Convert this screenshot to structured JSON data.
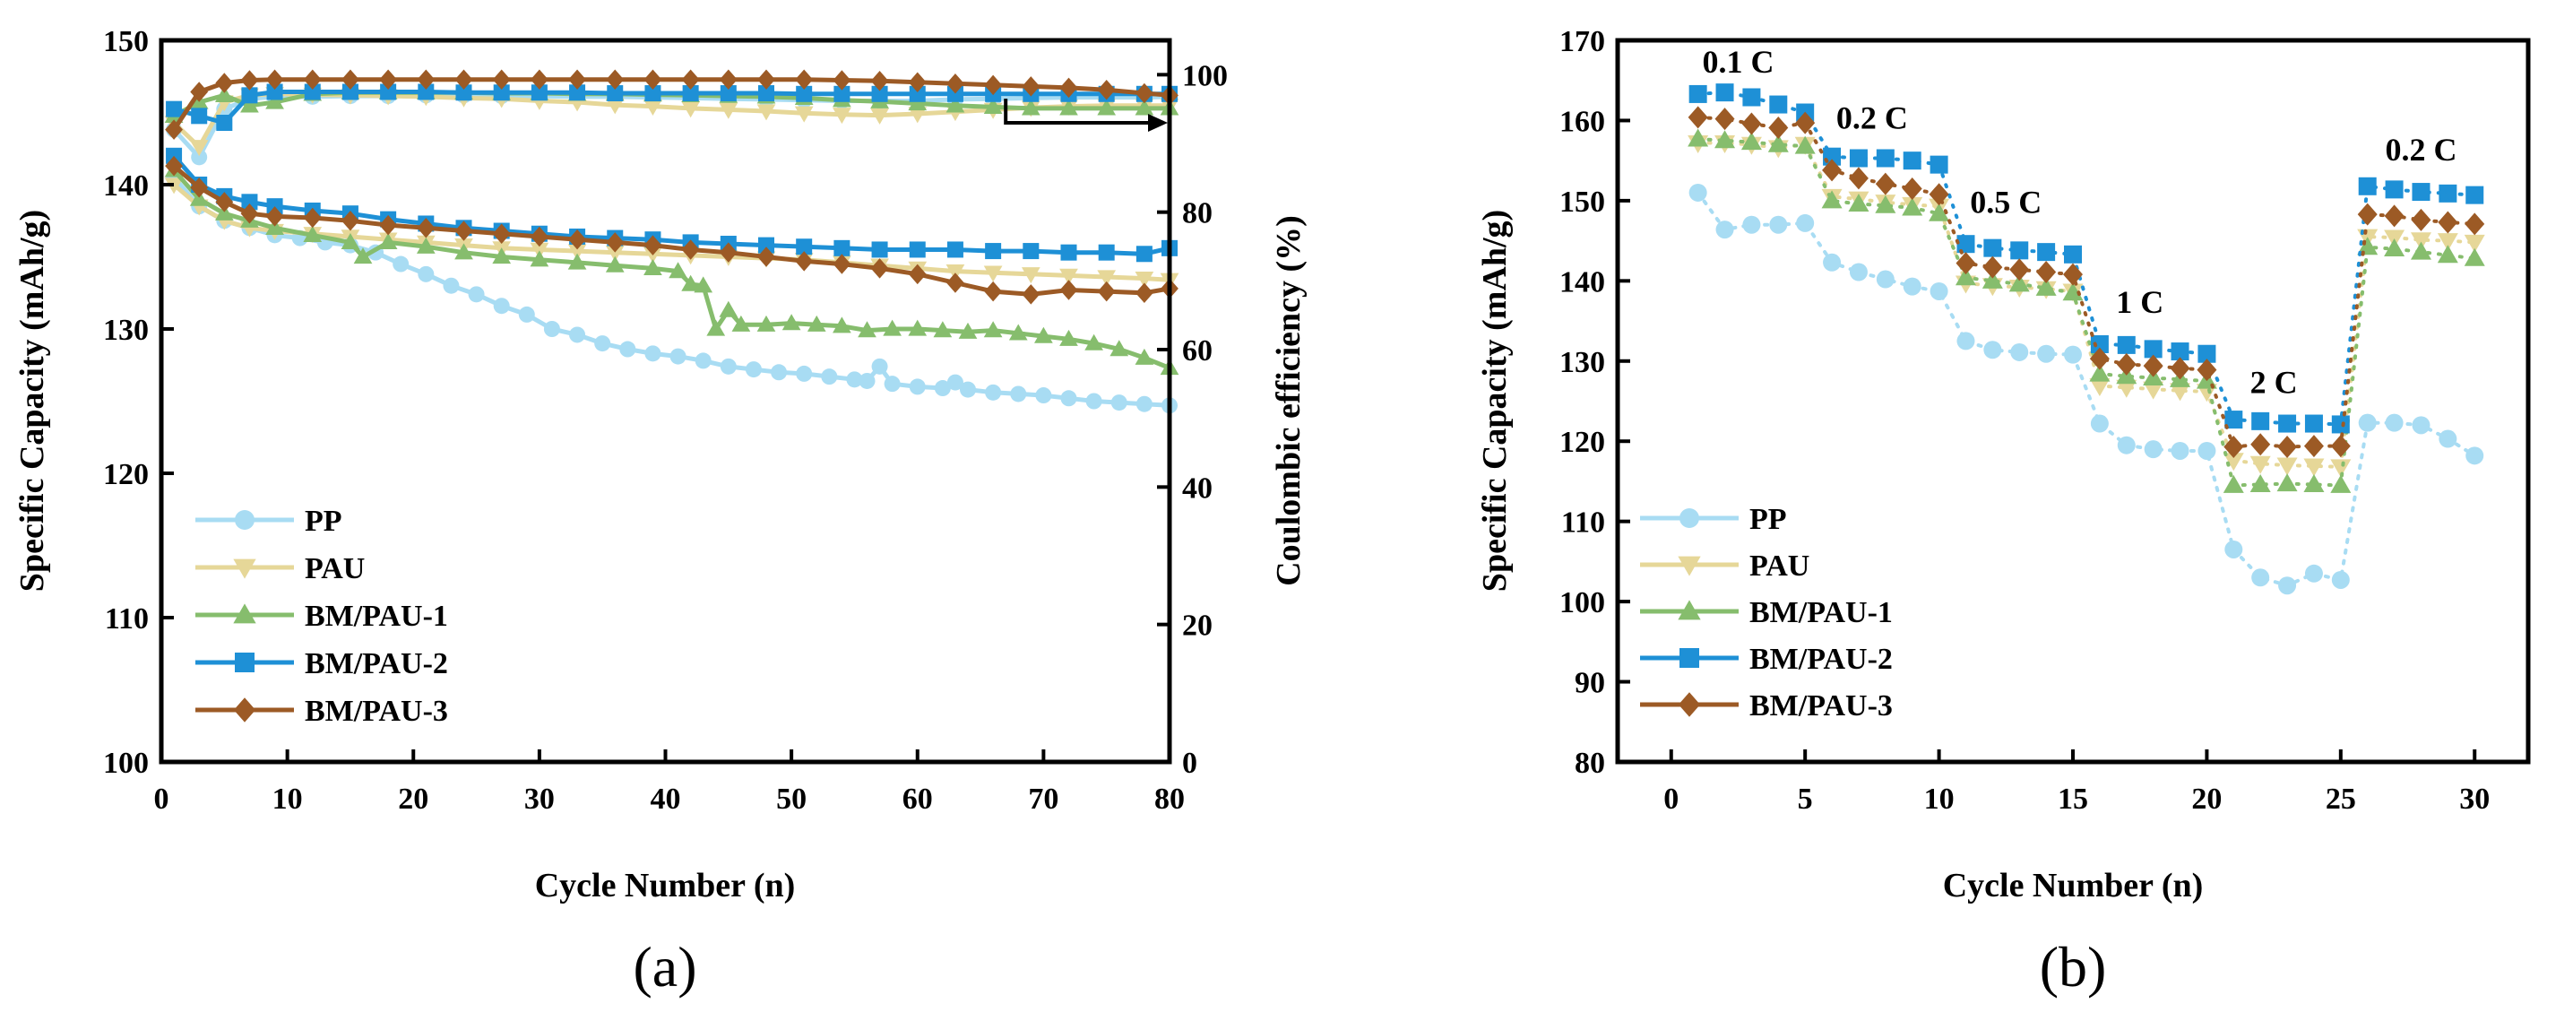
{
  "panel_labels": {
    "a": "(a)",
    "b": "(b)"
  },
  "colors": {
    "PP": "#a8dcf3",
    "PAU": "#e6d798",
    "BM/PAU-1": "#86bd6d",
    "BM/PAU-2": "#1e90d6",
    "BM/PAU-3": "#9c5a25"
  },
  "markers": {
    "PP": "circle",
    "PAU": "triangle-down",
    "BM/PAU-1": "triangle-up",
    "BM/PAU-2": "square",
    "BM/PAU-3": "diamond"
  },
  "chart_data": [
    {
      "type": "line",
      "id": "a",
      "title": "",
      "xlabel": "Cycle Number (n)",
      "ylabel": "Specific Capacity (mAh/g)",
      "y2label": "Coulombic efficiency (%)",
      "xlim": [
        0,
        80
      ],
      "ylim": [
        100,
        150
      ],
      "y2lim": [
        0,
        105
      ],
      "xticks": [
        0,
        10,
        20,
        30,
        40,
        50,
        60,
        70,
        80
      ],
      "yticks": [
        100,
        110,
        120,
        130,
        140,
        150
      ],
      "y2ticks": [
        0,
        20,
        40,
        60,
        80,
        100
      ],
      "legend_position": "bottom-left",
      "arrow_annotation": "points to right axis from CE curves at cycle 67",
      "series": [
        {
          "name": "PP",
          "axis": "left",
          "x": [
            1,
            3,
            5,
            7,
            9,
            11,
            13,
            15,
            17,
            19,
            21,
            23,
            25,
            27,
            29,
            31,
            33,
            35,
            37,
            39,
            41,
            43,
            45,
            47,
            49,
            51,
            53,
            55,
            56,
            57,
            58,
            60,
            62,
            63,
            64,
            66,
            68,
            70,
            72,
            74,
            76,
            78,
            80
          ],
          "values": [
            140.5,
            138.5,
            137.5,
            137.0,
            136.5,
            136.3,
            136.0,
            135.8,
            135.3,
            134.5,
            133.8,
            133.0,
            132.4,
            131.6,
            131.0,
            130.0,
            129.6,
            129.0,
            128.6,
            128.3,
            128.1,
            127.8,
            127.4,
            127.2,
            127.0,
            126.9,
            126.7,
            126.5,
            126.4,
            127.4,
            126.2,
            126.0,
            125.9,
            126.3,
            125.8,
            125.6,
            125.5,
            125.4,
            125.2,
            125.0,
            124.9,
            124.8,
            124.7
          ]
        },
        {
          "name": "PAU",
          "axis": "left",
          "x": [
            1,
            3,
            5,
            7,
            9,
            12,
            15,
            18,
            21,
            24,
            27,
            30,
            33,
            36,
            39,
            42,
            45,
            48,
            51,
            54,
            57,
            60,
            63,
            66,
            69,
            72,
            75,
            78,
            80
          ],
          "values": [
            140.0,
            138.5,
            137.5,
            137.0,
            136.8,
            136.6,
            136.4,
            136.2,
            136.0,
            135.8,
            135.6,
            135.5,
            135.4,
            135.3,
            135.2,
            135.1,
            135.0,
            134.9,
            134.8,
            134.6,
            134.4,
            134.2,
            134.0,
            133.9,
            133.8,
            133.7,
            133.6,
            133.5,
            133.4
          ]
        },
        {
          "name": "BM/PAU-1",
          "axis": "left",
          "x": [
            1,
            3,
            5,
            7,
            9,
            12,
            15,
            16,
            18,
            21,
            24,
            27,
            30,
            33,
            36,
            39,
            41,
            42,
            43,
            44,
            45,
            46,
            48,
            50,
            52,
            54,
            56,
            58,
            60,
            62,
            64,
            66,
            68,
            70,
            72,
            74,
            76,
            78,
            80
          ],
          "values": [
            141.0,
            139.0,
            138.0,
            137.5,
            137.0,
            136.5,
            136.0,
            135.0,
            136.0,
            135.7,
            135.3,
            135.0,
            134.8,
            134.6,
            134.4,
            134.2,
            134.0,
            133.1,
            133.0,
            130.0,
            131.3,
            130.3,
            130.3,
            130.4,
            130.3,
            130.2,
            129.9,
            130.0,
            130.0,
            129.9,
            129.8,
            129.9,
            129.7,
            129.5,
            129.3,
            129.0,
            128.6,
            128.0,
            127.3
          ]
        },
        {
          "name": "BM/PAU-2",
          "axis": "left",
          "x": [
            1,
            3,
            5,
            7,
            9,
            12,
            15,
            18,
            21,
            24,
            27,
            30,
            33,
            36,
            39,
            42,
            45,
            48,
            51,
            54,
            57,
            60,
            63,
            66,
            69,
            72,
            75,
            78,
            80
          ],
          "values": [
            142.0,
            140.0,
            139.2,
            138.8,
            138.5,
            138.2,
            138.0,
            137.6,
            137.3,
            137.0,
            136.8,
            136.6,
            136.4,
            136.3,
            136.2,
            136.0,
            135.9,
            135.8,
            135.7,
            135.6,
            135.5,
            135.5,
            135.5,
            135.4,
            135.4,
            135.3,
            135.3,
            135.2,
            135.6
          ]
        },
        {
          "name": "BM/PAU-3",
          "axis": "left",
          "x": [
            1,
            3,
            5,
            7,
            9,
            12,
            15,
            18,
            21,
            24,
            27,
            30,
            33,
            36,
            39,
            42,
            45,
            48,
            51,
            54,
            57,
            60,
            63,
            66,
            69,
            72,
            75,
            78,
            80
          ],
          "values": [
            141.3,
            139.8,
            138.8,
            138.0,
            137.8,
            137.7,
            137.5,
            137.2,
            137.0,
            136.8,
            136.6,
            136.4,
            136.2,
            136.0,
            135.8,
            135.5,
            135.3,
            135.0,
            134.7,
            134.5,
            134.2,
            133.8,
            133.2,
            132.6,
            132.4,
            132.7,
            132.6,
            132.5,
            132.8
          ]
        },
        {
          "name": "PP CE",
          "axis": "right",
          "x": [
            1,
            3,
            5,
            7,
            9,
            12,
            15,
            18,
            21,
            24,
            27,
            30,
            33,
            36,
            39,
            42,
            45,
            48,
            51,
            54,
            57,
            60,
            63,
            66,
            69,
            72,
            75,
            78,
            80
          ],
          "values": [
            92,
            88,
            95,
            96.5,
            96.8,
            96.8,
            96.9,
            96.9,
            97,
            97,
            96.9,
            96.9,
            96.8,
            96.8,
            96.7,
            96.6,
            96.5,
            96.4,
            96.3,
            96.2,
            96.2,
            96.2,
            96.4,
            96.5,
            96.6,
            96.7,
            96.7,
            96.7,
            96.8
          ]
        },
        {
          "name": "PAU CE",
          "axis": "right",
          "x": [
            1,
            3,
            5,
            7,
            9,
            12,
            15,
            18,
            21,
            24,
            27,
            30,
            33,
            36,
            39,
            42,
            45,
            48,
            51,
            54,
            57,
            60,
            63,
            66,
            69,
            72,
            75,
            78,
            80
          ],
          "values": [
            93,
            89.5,
            96,
            97,
            97.2,
            97.1,
            97,
            96.9,
            96.8,
            96.6,
            96.5,
            96.2,
            96,
            95.6,
            95.4,
            95.1,
            94.9,
            94.7,
            94.4,
            94.2,
            94.1,
            94.3,
            94.6,
            94.9,
            95.2,
            95.4,
            95.5,
            95.5,
            95.5
          ]
        },
        {
          "name": "BM/PAU-1 CE",
          "axis": "right",
          "x": [
            1,
            3,
            5,
            7,
            9,
            12,
            15,
            18,
            21,
            24,
            27,
            30,
            33,
            36,
            39,
            42,
            45,
            48,
            51,
            54,
            57,
            60,
            63,
            66,
            69,
            72,
            75,
            78,
            80
          ],
          "values": [
            94,
            96,
            97,
            95.5,
            96,
            97.2,
            97.4,
            97.4,
            97.4,
            97.4,
            97.3,
            97.3,
            97.2,
            97.2,
            97.1,
            97,
            96.9,
            96.8,
            96.6,
            96.3,
            96.1,
            95.8,
            95.5,
            95.3,
            95.1,
            95.1,
            95.1,
            95.1,
            95.1
          ]
        },
        {
          "name": "BM/PAU-2 CE",
          "axis": "right",
          "x": [
            1,
            3,
            5,
            7,
            9,
            12,
            15,
            18,
            21,
            24,
            27,
            30,
            33,
            36,
            39,
            42,
            45,
            48,
            51,
            54,
            57,
            60,
            63,
            66,
            69,
            72,
            75,
            78,
            80
          ],
          "values": [
            95,
            94,
            93,
            97,
            97.5,
            97.5,
            97.5,
            97.5,
            97.5,
            97.4,
            97.4,
            97.4,
            97.4,
            97.3,
            97.3,
            97.3,
            97.3,
            97.3,
            97.2,
            97.2,
            97.2,
            97.2,
            97.2,
            97.2,
            97.2,
            97.2,
            97.2,
            97.2,
            97.2
          ]
        },
        {
          "name": "BM/PAU-3 CE",
          "axis": "right",
          "x": [
            1,
            3,
            5,
            7,
            9,
            12,
            15,
            18,
            21,
            24,
            27,
            30,
            33,
            36,
            39,
            42,
            45,
            48,
            51,
            54,
            57,
            60,
            63,
            66,
            69,
            72,
            75,
            78,
            80
          ],
          "values": [
            92,
            97.5,
            98.8,
            99.2,
            99.3,
            99.3,
            99.3,
            99.3,
            99.3,
            99.3,
            99.3,
            99.3,
            99.3,
            99.3,
            99.3,
            99.3,
            99.3,
            99.3,
            99.3,
            99.2,
            99.1,
            98.9,
            98.7,
            98.5,
            98.3,
            98.1,
            97.8,
            97.3,
            97.0
          ]
        }
      ]
    },
    {
      "type": "line",
      "id": "b",
      "title": "",
      "xlabel": "Cycle Number (n)",
      "ylabel": "Specific Capacity (mAh/g)",
      "xlim": [
        -2,
        32
      ],
      "ylim": [
        80,
        170
      ],
      "xticks": [
        0,
        5,
        10,
        15,
        20,
        25,
        30
      ],
      "yticks": [
        80,
        90,
        100,
        110,
        120,
        130,
        140,
        150,
        160,
        170
      ],
      "legend_position": "bottom-left",
      "annotations": [
        {
          "text": "0.1 C",
          "x": 2.5,
          "y": 166
        },
        {
          "text": "0.2 C",
          "x": 7.5,
          "y": 159
        },
        {
          "text": "0.5 C",
          "x": 12.5,
          "y": 148.5
        },
        {
          "text": "1 C",
          "x": 17.5,
          "y": 136
        },
        {
          "text": "2 C",
          "x": 22.5,
          "y": 126
        },
        {
          "text": "0.2 C",
          "x": 28,
          "y": 155
        }
      ],
      "x": [
        1,
        2,
        3,
        4,
        5,
        6,
        7,
        8,
        9,
        10,
        11,
        12,
        13,
        14,
        15,
        16,
        17,
        18,
        19,
        20,
        21,
        22,
        23,
        24,
        25,
        26,
        27,
        28,
        29,
        30
      ],
      "series": [
        {
          "name": "PP",
          "values": [
            151,
            146.4,
            147,
            147,
            147.2,
            142.3,
            141.1,
            140.2,
            139.3,
            138.7,
            132.5,
            131.4,
            131.1,
            130.9,
            130.8,
            122.2,
            119.5,
            119,
            118.8,
            118.8,
            106.5,
            103,
            102,
            103.5,
            102.7,
            122.3,
            122.3,
            122,
            120.3,
            118.2
          ]
        },
        {
          "name": "PAU",
          "values": [
            157.2,
            157.2,
            157,
            156.6,
            157,
            150.5,
            150.2,
            149.8,
            149.5,
            149.3,
            139.7,
            139.4,
            139.2,
            139,
            138.7,
            126.9,
            126.7,
            126.5,
            126.3,
            126.2,
            117.6,
            117.2,
            117,
            116.9,
            116.8,
            145.5,
            145.4,
            145.1,
            145,
            144.8
          ]
        },
        {
          "name": "BM/PAU-1",
          "values": [
            157.7,
            157.5,
            157.3,
            157,
            156.8,
            150,
            149.6,
            149.4,
            149.1,
            148.4,
            140.4,
            140,
            139.6,
            139.1,
            138.5,
            128.4,
            128.1,
            127.9,
            127.7,
            127.5,
            114.5,
            114.6,
            114.7,
            114.6,
            114.5,
            144.2,
            144,
            143.6,
            143.2,
            142.8
          ]
        },
        {
          "name": "BM/PAU-2",
          "values": [
            163.3,
            163.5,
            162.9,
            162,
            161,
            155.5,
            155.3,
            155.3,
            155,
            154.5,
            144.6,
            144.1,
            143.8,
            143.6,
            143.3,
            132.1,
            132,
            131.5,
            131.2,
            130.9,
            122.7,
            122.5,
            122.2,
            122.2,
            122.1,
            151.8,
            151.4,
            151.1,
            150.9,
            150.7
          ]
        },
        {
          "name": "BM/PAU-3",
          "values": [
            160.4,
            160.2,
            159.6,
            159.1,
            159.7,
            153.8,
            152.8,
            152.1,
            151.5,
            150.8,
            142.2,
            141.7,
            141.4,
            141.1,
            140.8,
            130.3,
            129.6,
            129.4,
            129.1,
            128.9,
            119.3,
            119.6,
            119.3,
            119.4,
            119.4,
            148.3,
            148.1,
            147.6,
            147.3,
            147.1
          ]
        }
      ]
    }
  ]
}
